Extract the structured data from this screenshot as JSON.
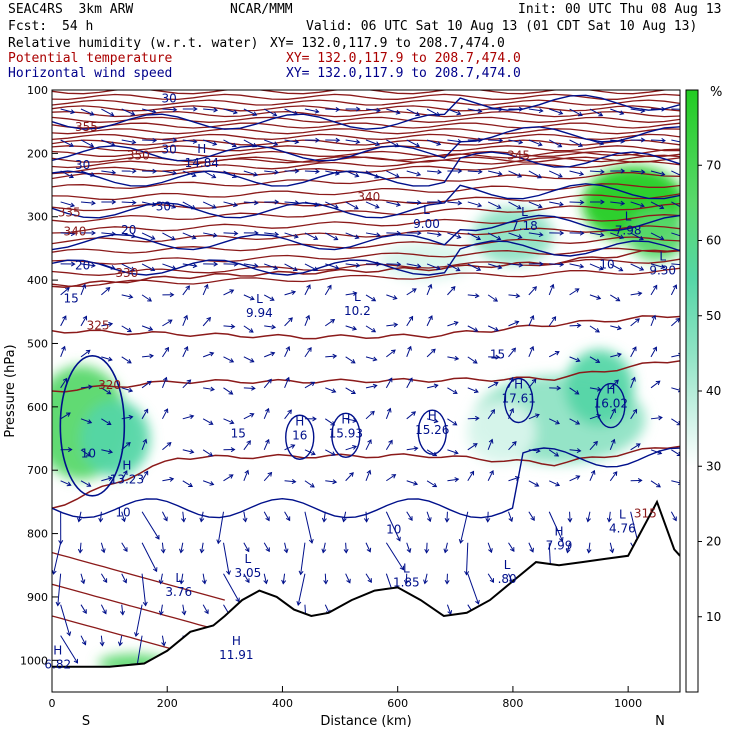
{
  "header": {
    "model": "SEAC4RS  3km ARW",
    "center": "NCAR/MMM",
    "init": "Init: 00 UTC Thu 08 Aug 13",
    "fcst_label": "Fcst:",
    "fcst_value": "54 h",
    "valid": "Valid: 06 UTC Sat 10 Aug 13 (01 CDT Sat 10 Aug 13)"
  },
  "fields": [
    {
      "name": "Relative humidity (w.r.t. water)",
      "xy": "XY= 132.0,117.9 to 208.7,474.0",
      "color": "#000000"
    },
    {
      "name": "Potential temperature",
      "xy": "XY= 132.0,117.9 to 208.7,474.0",
      "color": "#aa0000"
    },
    {
      "name": "Horizontal wind speed",
      "xy": "XY= 132.0,117.9 to 208.7,474.0",
      "color": "#00008b"
    }
  ],
  "chart_data": {
    "type": "heatmap",
    "title": "",
    "xlabel": "Distance (km)",
    "ylabel": "Pressure (hPa)",
    "xlim": [
      0,
      1090
    ],
    "ylim": [
      1050,
      100
    ],
    "x_ticks": [
      0,
      200,
      400,
      600,
      800,
      1000
    ],
    "y_ticks": [
      100,
      200,
      300,
      400,
      500,
      600,
      700,
      800,
      900,
      1000
    ],
    "endpoints": {
      "left": "S",
      "right": "N"
    },
    "colorbar": {
      "unit": "%",
      "ticks": [
        10,
        20,
        30,
        40,
        50,
        60,
        70
      ],
      "range": [
        0,
        80
      ],
      "stops": [
        {
          "value": 0,
          "color": "#ffffff"
        },
        {
          "value": 30,
          "color": "#ffffff"
        },
        {
          "value": 35,
          "color": "#d9f5ec"
        },
        {
          "value": 45,
          "color": "#8fe3c4"
        },
        {
          "value": 55,
          "color": "#55d6a6"
        },
        {
          "value": 65,
          "color": "#59d86c"
        },
        {
          "value": 80,
          "color": "#22cc22"
        }
      ]
    },
    "rh_regions": [
      {
        "x": 50,
        "p": 625,
        "rx": 80,
        "rp": 90,
        "rh": 62
      },
      {
        "x": 110,
        "p": 650,
        "rx": 60,
        "rp": 60,
        "rh": 55
      },
      {
        "x": 1010,
        "p": 280,
        "rx": 90,
        "rp": 60,
        "rh": 68
      },
      {
        "x": 1050,
        "p": 330,
        "rx": 50,
        "rp": 40,
        "rh": 62
      },
      {
        "x": 880,
        "p": 620,
        "rx": 150,
        "rp": 70,
        "rh": 40
      },
      {
        "x": 950,
        "p": 570,
        "rx": 60,
        "rp": 60,
        "rh": 48
      },
      {
        "x": 780,
        "p": 640,
        "rx": 60,
        "rp": 50,
        "rh": 35
      },
      {
        "x": 800,
        "p": 330,
        "rx": 70,
        "rp": 45,
        "rh": 38
      },
      {
        "x": 650,
        "p": 370,
        "rx": 80,
        "rp": 30,
        "rh": 34
      },
      {
        "x": 140,
        "p": 1005,
        "rx": 60,
        "rp": 15,
        "rh": 60
      }
    ],
    "theta_levels": [
      {
        "theta": 325,
        "p": [
          480,
          485,
          490,
          488,
          470,
          455
        ]
      },
      {
        "theta": 320,
        "p": [
          575,
          560,
          560,
          558,
          555,
          525
        ]
      },
      {
        "theta": 315,
        "p": [
          760,
          680,
          678,
          677,
          690,
          660
        ]
      },
      {
        "theta": 330,
        "p": [
          410,
          395,
          388,
          382,
          372,
          350
        ]
      }
    ],
    "theta_labels": [
      {
        "text": "355",
        "x": 40,
        "p": 165
      },
      {
        "text": "350",
        "x": 130,
        "p": 210
      },
      {
        "text": "345",
        "x": 790,
        "p": 210
      },
      {
        "text": "340",
        "x": 20,
        "p": 330
      },
      {
        "text": "340",
        "x": 530,
        "p": 275
      },
      {
        "text": "335",
        "x": 10,
        "p": 300
      },
      {
        "text": "330",
        "x": 110,
        "p": 395
      },
      {
        "text": "325",
        "x": 60,
        "p": 478
      },
      {
        "text": "320",
        "x": 80,
        "p": 572
      },
      {
        "text": "315",
        "x": 1010,
        "p": 775
      }
    ],
    "wind_labels": [
      {
        "text": "30",
        "x": 40,
        "p": 225
      },
      {
        "text": "30",
        "x": 190,
        "p": 200
      },
      {
        "text": "30",
        "x": 190,
        "p": 120
      },
      {
        "text": "30",
        "x": 180,
        "p": 290
      },
      {
        "text": "20",
        "x": 120,
        "p": 327
      },
      {
        "text": "20",
        "x": 40,
        "p": 383
      },
      {
        "text": "15",
        "x": 20,
        "p": 435
      },
      {
        "text": "15",
        "x": 310,
        "p": 648
      },
      {
        "text": "15",
        "x": 760,
        "p": 524
      },
      {
        "text": "10",
        "x": 50,
        "p": 680
      },
      {
        "text": "10",
        "x": 110,
        "p": 773
      },
      {
        "text": "10",
        "x": 580,
        "p": 800
      },
      {
        "text": "10",
        "x": 950,
        "p": 382
      }
    ],
    "extrema": [
      {
        "type": "H",
        "value": "14.84",
        "x": 260,
        "p": 218
      },
      {
        "type": "H",
        "value": "13.23",
        "x": 130,
        "p": 718
      },
      {
        "type": "H",
        "value": "16",
        "x": 430,
        "p": 648
      },
      {
        "type": "H",
        "value": "15.93",
        "x": 510,
        "p": 645
      },
      {
        "type": "H",
        "value": "15.26",
        "x": 660,
        "p": 640
      },
      {
        "type": "H",
        "value": "17.61",
        "x": 810,
        "p": 590
      },
      {
        "type": "H",
        "value": "16.02",
        "x": 970,
        "p": 598
      },
      {
        "type": "H",
        "value": "11.91",
        "x": 320,
        "p": 995
      },
      {
        "type": "H",
        "value": "6.82",
        "x": 10,
        "p": 1010
      },
      {
        "type": "H",
        "value": "7.99",
        "x": 880,
        "p": 822
      },
      {
        "type": "L",
        "value": "3.76",
        "x": 220,
        "p": 895
      },
      {
        "type": "L",
        "value": "3.05",
        "x": 340,
        "p": 865
      },
      {
        "type": "L",
        "value": "1.85",
        "x": 615,
        "p": 880
      },
      {
        "type": "L",
        "value": ".80",
        "x": 790,
        "p": 875
      },
      {
        "type": "L",
        "value": "4.76",
        "x": 990,
        "p": 795
      },
      {
        "type": "L",
        "value": "9.94",
        "x": 360,
        "p": 455
      },
      {
        "type": "L",
        "value": "10.2",
        "x": 530,
        "p": 452
      },
      {
        "type": "L",
        "value": "9.00",
        "x": 650,
        "p": 315
      },
      {
        "type": "L",
        "value": "7.18",
        "x": 820,
        "p": 318
      },
      {
        "type": "L",
        "value": "7.98",
        "x": 1000,
        "p": 325
      },
      {
        "type": "L",
        "value": "9.30",
        "x": 1060,
        "p": 388
      }
    ],
    "terrain": {
      "x": [
        0,
        100,
        160,
        200,
        240,
        280,
        300,
        330,
        360,
        390,
        420,
        450,
        480,
        520,
        560,
        600,
        640,
        680,
        720,
        760,
        800,
        840,
        880,
        920,
        960,
        1000,
        1050,
        1080,
        1090
      ],
      "p": [
        1010,
        1010,
        1005,
        985,
        955,
        945,
        930,
        905,
        890,
        900,
        920,
        930,
        925,
        905,
        890,
        885,
        905,
        930,
        925,
        905,
        875,
        845,
        850,
        845,
        840,
        835,
        750,
        825,
        835
      ]
    },
    "wind_stats": {
      "arrow_reference": "m/s",
      "rows": 19,
      "cols": 31
    }
  }
}
